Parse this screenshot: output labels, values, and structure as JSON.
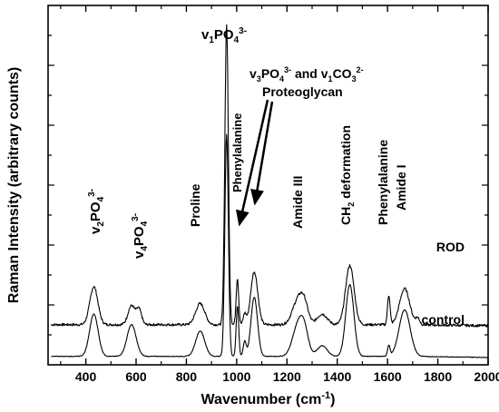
{
  "chart_data": {
    "type": "line",
    "title": "",
    "xlabel": "Wavenumber (cm",
    "xlabel_sup": "-1",
    "xlabel_close": ")",
    "ylabel": "Raman Intensity (arbitrary counts)",
    "xlim": [
      250,
      2000
    ],
    "x_ticks": [
      "400",
      "600",
      "800",
      "1000",
      "1200",
      "1400",
      "1600",
      "1800",
      "2000"
    ],
    "y_tick_labels": "none",
    "grid": false,
    "series": [
      {
        "name": "ROD",
        "baseline": 0.15,
        "noise": 0.012,
        "peaks": [
          [
            432,
            0.18,
            16
          ],
          [
            582,
            0.09,
            14
          ],
          [
            612,
            0.07,
            10
          ],
          [
            855,
            0.1,
            18
          ],
          [
            960,
            1.42,
            7
          ],
          [
            1003,
            0.22,
            5
          ],
          [
            1032,
            0.05,
            6
          ],
          [
            1070,
            0.25,
            14
          ],
          [
            1245,
            0.12,
            22
          ],
          [
            1270,
            0.07,
            15
          ],
          [
            1450,
            0.28,
            17
          ],
          [
            1340,
            0.05,
            20
          ],
          [
            1605,
            0.14,
            5
          ],
          [
            1668,
            0.17,
            20
          ],
          [
            1720,
            0.03,
            8
          ]
        ]
      },
      {
        "name": "control",
        "baseline": 0.0,
        "noise": 0.003,
        "peaks": [
          [
            432,
            0.2,
            17
          ],
          [
            582,
            0.15,
            18
          ],
          [
            855,
            0.12,
            18
          ],
          [
            960,
            1.05,
            7
          ],
          [
            1003,
            0.24,
            5
          ],
          [
            1032,
            0.07,
            6
          ],
          [
            1070,
            0.28,
            13
          ],
          [
            1245,
            0.15,
            22
          ],
          [
            1270,
            0.09,
            16
          ],
          [
            1340,
            0.05,
            20
          ],
          [
            1450,
            0.34,
            16
          ],
          [
            1605,
            0.05,
            5
          ],
          [
            1668,
            0.22,
            22
          ]
        ]
      }
    ],
    "annotations": [
      {
        "text": "v",
        "sub1": "1",
        "mid": "PO",
        "sub2": "4",
        "sup": "3-"
      },
      {
        "text": "v",
        "sub1": "3",
        "mid": "PO",
        "sub2": "4",
        "sup": "3-",
        "tail": " and v",
        "sub3": "1",
        "mid2": "CO",
        "sub4": "3",
        "sup2": "2-"
      },
      {
        "text": "Proteoglycan"
      },
      {
        "text": "Phenylalanine"
      },
      {
        "text": "v",
        "sub1": "2",
        "mid": "PO",
        "sub2": "4",
        "sup": "3-"
      },
      {
        "text": "v",
        "sub1": "4",
        "mid": "PO",
        "sub2": "4",
        "sup": "3-"
      },
      {
        "text": "Proline"
      },
      {
        "text": "Amide III"
      },
      {
        "text": "CH",
        "sub1": "2",
        "mid": " deformation"
      },
      {
        "text": "Phenylalanine"
      },
      {
        "text": "Amide I"
      }
    ]
  }
}
